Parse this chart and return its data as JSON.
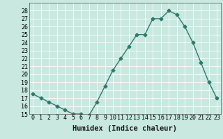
{
  "x": [
    0,
    1,
    2,
    3,
    4,
    5,
    6,
    7,
    8,
    9,
    10,
    11,
    12,
    13,
    14,
    15,
    16,
    17,
    18,
    19,
    20,
    21,
    22,
    23
  ],
  "y": [
    17.5,
    17.0,
    16.5,
    16.0,
    15.5,
    15.0,
    15.0,
    14.8,
    16.5,
    18.5,
    20.5,
    22.0,
    23.5,
    25.0,
    25.0,
    27.0,
    27.0,
    28.0,
    27.5,
    26.0,
    24.0,
    21.5,
    19.0,
    17.0
  ],
  "line_color": "#2d7b6e",
  "marker": "D",
  "marker_size": 2.5,
  "bg_color": "#c8e8e0",
  "grid_color": "#ffffff",
  "xlabel": "Humidex (Indice chaleur)",
  "xlim": [
    -0.5,
    23.5
  ],
  "ylim": [
    15,
    29
  ],
  "yticks": [
    15,
    16,
    17,
    18,
    19,
    20,
    21,
    22,
    23,
    24,
    25,
    26,
    27,
    28
  ],
  "xtick_labels": [
    "0",
    "1",
    "2",
    "3",
    "4",
    "5",
    "6",
    "7",
    "8",
    "9",
    "10",
    "11",
    "12",
    "13",
    "14",
    "15",
    "16",
    "17",
    "18",
    "19",
    "20",
    "21",
    "22",
    "23"
  ],
  "xlabel_fontsize": 7.5,
  "tick_fontsize": 6,
  "line_width": 1.0
}
